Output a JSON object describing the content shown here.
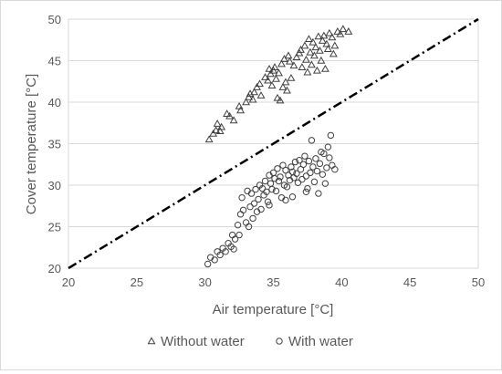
{
  "chart_data": {
    "type": "scatter",
    "title": "",
    "xlabel": "Air temperature [°C]",
    "ylabel": "Cover temperature [°C]",
    "xlim": [
      20,
      50
    ],
    "ylim": [
      20,
      50
    ],
    "xticks": [
      20,
      25,
      30,
      35,
      40,
      45,
      50
    ],
    "yticks": [
      20,
      25,
      30,
      35,
      40,
      45,
      50
    ],
    "grid": "horizontal",
    "legend_position": "bottom",
    "reference_line": {
      "style": "dash-dot",
      "color": "#000000",
      "points": [
        [
          20,
          20
        ],
        [
          50,
          50
        ]
      ]
    },
    "series": [
      {
        "name": "Without water",
        "marker": "triangle",
        "color": "#404040",
        "points": [
          [
            30.3,
            35.5
          ],
          [
            30.6,
            36.2
          ],
          [
            30.8,
            36.6
          ],
          [
            30.9,
            37.4
          ],
          [
            31.1,
            36.5
          ],
          [
            31.2,
            37.0
          ],
          [
            31.6,
            38.6
          ],
          [
            31.8,
            38.3
          ],
          [
            32.1,
            37.8
          ],
          [
            32.5,
            39.5
          ],
          [
            32.6,
            39.0
          ],
          [
            33.0,
            40.0
          ],
          [
            33.2,
            40.6
          ],
          [
            33.3,
            41.0
          ],
          [
            33.5,
            40.3
          ],
          [
            33.6,
            41.2
          ],
          [
            33.8,
            41.8
          ],
          [
            34.0,
            42.2
          ],
          [
            34.1,
            40.8
          ],
          [
            34.4,
            43.0
          ],
          [
            34.6,
            42.6
          ],
          [
            34.7,
            44.0
          ],
          [
            34.8,
            43.4
          ],
          [
            34.9,
            42.0
          ],
          [
            35.0,
            43.8
          ],
          [
            35.1,
            44.2
          ],
          [
            35.2,
            42.8
          ],
          [
            35.3,
            40.5
          ],
          [
            35.4,
            43.5
          ],
          [
            35.5,
            40.2
          ],
          [
            35.6,
            44.6
          ],
          [
            35.7,
            41.8
          ],
          [
            35.8,
            45.2
          ],
          [
            35.9,
            42.4
          ],
          [
            36.0,
            41.4
          ],
          [
            36.1,
            45.6
          ],
          [
            36.2,
            44.9
          ],
          [
            36.3,
            42.9
          ],
          [
            36.5,
            44.4
          ],
          [
            36.7,
            45.4
          ],
          [
            36.9,
            45.9
          ],
          [
            37.0,
            46.3
          ],
          [
            37.1,
            44.2
          ],
          [
            37.3,
            46.8
          ],
          [
            37.4,
            45.1
          ],
          [
            37.5,
            43.6
          ],
          [
            37.6,
            47.6
          ],
          [
            37.7,
            46.0
          ],
          [
            37.8,
            44.5
          ],
          [
            37.9,
            47.2
          ],
          [
            38.0,
            45.6
          ],
          [
            38.1,
            46.6
          ],
          [
            38.2,
            43.8
          ],
          [
            38.3,
            47.9
          ],
          [
            38.4,
            46.2
          ],
          [
            38.5,
            45.0
          ],
          [
            38.6,
            47.4
          ],
          [
            38.7,
            48.0
          ],
          [
            38.8,
            44.0
          ],
          [
            38.9,
            47.0
          ],
          [
            39.0,
            46.4
          ],
          [
            39.1,
            48.3
          ],
          [
            39.3,
            47.8
          ],
          [
            39.4,
            45.8
          ],
          [
            39.5,
            46.8
          ],
          [
            39.7,
            48.5
          ],
          [
            39.9,
            48.2
          ],
          [
            40.1,
            48.8
          ],
          [
            40.5,
            48.5
          ]
        ]
      },
      {
        "name": "With water",
        "marker": "circle",
        "color": "#404040",
        "points": [
          [
            30.2,
            20.5
          ],
          [
            30.4,
            21.3
          ],
          [
            30.7,
            21.0
          ],
          [
            30.9,
            22.0
          ],
          [
            31.1,
            21.6
          ],
          [
            31.3,
            22.4
          ],
          [
            31.5,
            22.0
          ],
          [
            31.7,
            23.0
          ],
          [
            31.9,
            22.6
          ],
          [
            32.0,
            24.0
          ],
          [
            32.1,
            22.3
          ],
          [
            32.2,
            23.5
          ],
          [
            32.4,
            25.2
          ],
          [
            32.5,
            24.0
          ],
          [
            32.6,
            26.5
          ],
          [
            32.7,
            28.5
          ],
          [
            32.8,
            27.0
          ],
          [
            33.0,
            25.5
          ],
          [
            33.1,
            29.3
          ],
          [
            33.2,
            25.0
          ],
          [
            33.3,
            27.4
          ],
          [
            33.4,
            29.0
          ],
          [
            33.5,
            26.0
          ],
          [
            33.6,
            27.8
          ],
          [
            33.7,
            29.5
          ],
          [
            33.8,
            26.8
          ],
          [
            33.9,
            28.3
          ],
          [
            34.0,
            30.0
          ],
          [
            34.1,
            27.1
          ],
          [
            34.2,
            29.6
          ],
          [
            34.3,
            28.8
          ],
          [
            34.4,
            30.5
          ],
          [
            34.5,
            29.2
          ],
          [
            34.6,
            28.0
          ],
          [
            34.7,
            31.2
          ],
          [
            34.8,
            30.2
          ],
          [
            34.9,
            29.5
          ],
          [
            35.0,
            31.5
          ],
          [
            35.1,
            30.8
          ],
          [
            35.2,
            29.3
          ],
          [
            35.3,
            32.0
          ],
          [
            35.4,
            30.5
          ],
          [
            35.5,
            31.0
          ],
          [
            35.6,
            28.5
          ],
          [
            35.7,
            32.4
          ],
          [
            35.8,
            30.0
          ],
          [
            35.9,
            31.8
          ],
          [
            36.0,
            29.8
          ],
          [
            36.1,
            31.2
          ],
          [
            36.2,
            30.6
          ],
          [
            36.3,
            32.2
          ],
          [
            36.4,
            31.6
          ],
          [
            36.5,
            30.9
          ],
          [
            36.6,
            32.8
          ],
          [
            36.7,
            31.4
          ],
          [
            36.8,
            30.3
          ],
          [
            36.9,
            33.0
          ],
          [
            37.0,
            31.9
          ],
          [
            37.1,
            30.7
          ],
          [
            37.2,
            32.5
          ],
          [
            37.3,
            33.5
          ],
          [
            37.4,
            31.1
          ],
          [
            37.5,
            29.6
          ],
          [
            37.6,
            32.9
          ],
          [
            37.7,
            31.5
          ],
          [
            37.8,
            35.4
          ],
          [
            37.9,
            32.2
          ],
          [
            38.0,
            30.4
          ],
          [
            38.1,
            33.2
          ],
          [
            38.2,
            31.7
          ],
          [
            38.3,
            29.0
          ],
          [
            38.4,
            32.6
          ],
          [
            38.5,
            34.0
          ],
          [
            38.6,
            31.3
          ],
          [
            38.7,
            33.8
          ],
          [
            38.8,
            30.2
          ],
          [
            38.9,
            32.1
          ],
          [
            39.0,
            34.6
          ],
          [
            39.1,
            33.3
          ],
          [
            39.2,
            36.0
          ],
          [
            39.3,
            32.4
          ],
          [
            39.5,
            31.9
          ],
          [
            37.4,
            29.2
          ],
          [
            36.4,
            28.6
          ],
          [
            35.9,
            28.2
          ],
          [
            34.7,
            27.6
          ]
        ]
      }
    ]
  }
}
